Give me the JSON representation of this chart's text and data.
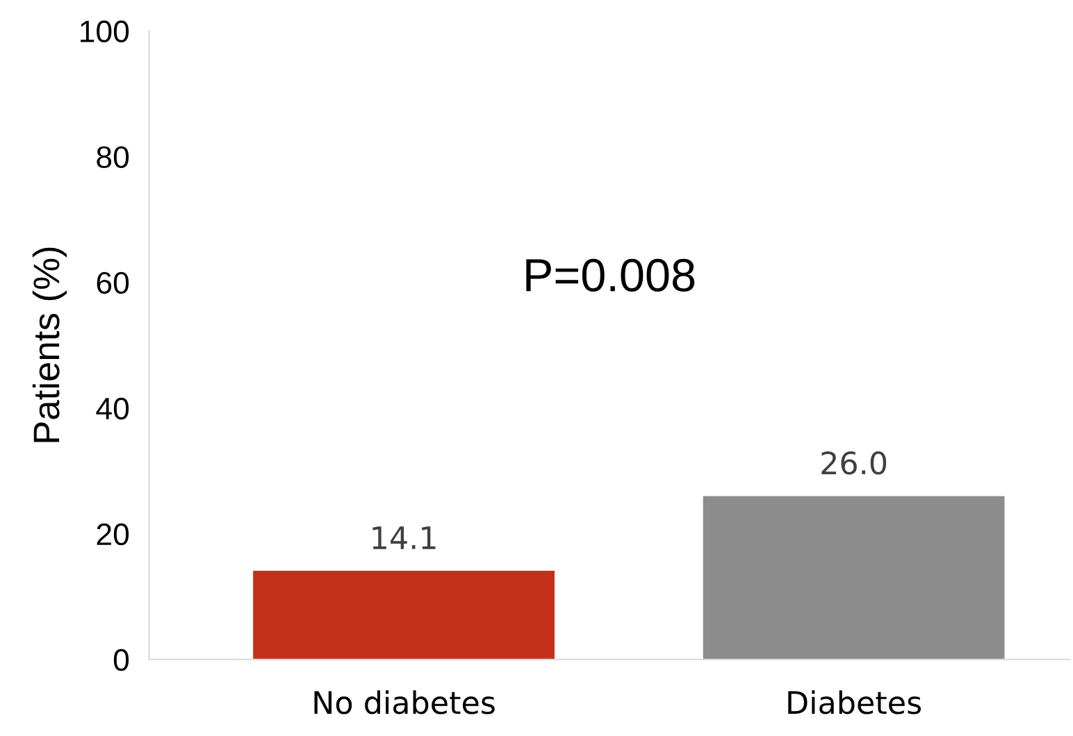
{
  "chart_data": {
    "type": "bar",
    "ylabel": "Patients (%)",
    "categories": [
      "No diabetes",
      "Diabetes"
    ],
    "values": [
      14.1,
      26.0
    ],
    "colors": [
      "#c3311c",
      "#8c8c8c"
    ],
    "value_labels": [
      "14.1",
      "26.0"
    ],
    "ylim": [
      0,
      100
    ],
    "yticks": [
      0,
      20,
      40,
      60,
      80,
      100
    ],
    "grid": false,
    "legend": false,
    "annotations": [
      "P=0.008"
    ]
  }
}
